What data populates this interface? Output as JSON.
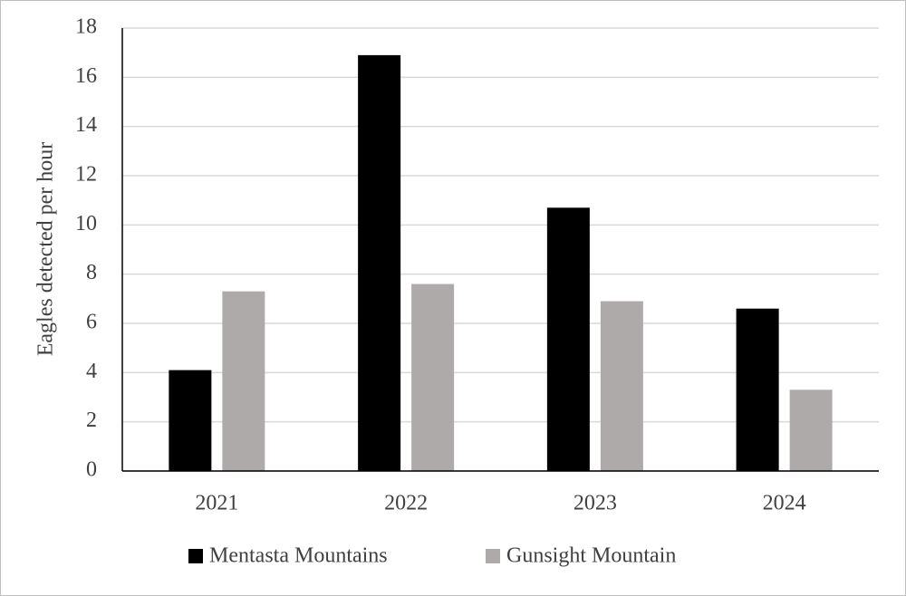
{
  "chart_data": {
    "type": "bar",
    "y_label": "Eagles detected per hour",
    "categories": [
      "2021",
      "2022",
      "2023",
      "2024"
    ],
    "series": [
      {
        "name": "Mentasta Mountains",
        "color": "#000000",
        "values": [
          4.1,
          16.9,
          10.7,
          6.6
        ]
      },
      {
        "name": "Gunsight Mountain",
        "color": "#aeaaaa",
        "values": [
          7.3,
          7.6,
          6.9,
          3.3
        ]
      }
    ],
    "ylim": [
      0,
      18
    ],
    "yticks": [
      0,
      2,
      4,
      6,
      8,
      10,
      12,
      14,
      16,
      18
    ],
    "grid": true,
    "legend": "bottom"
  }
}
